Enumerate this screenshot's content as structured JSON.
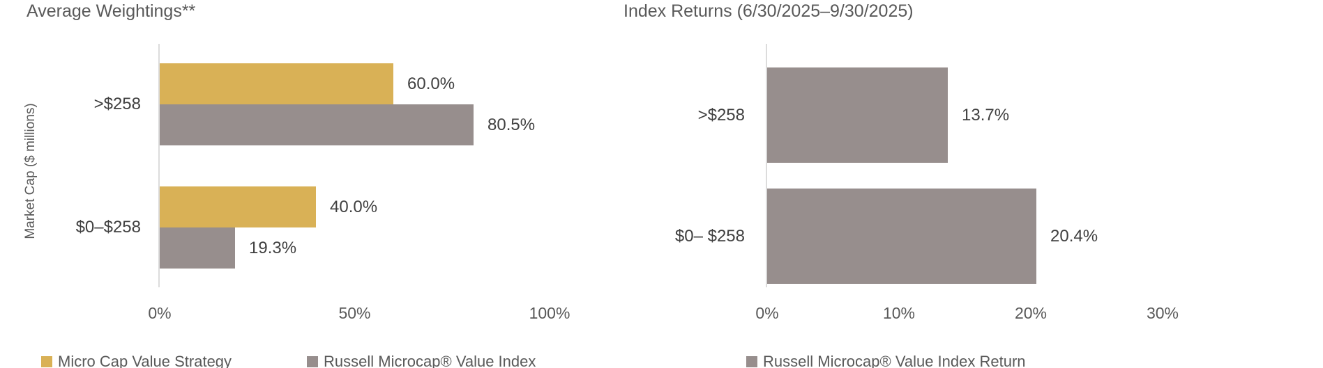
{
  "page": {
    "background_color": "#ffffff",
    "accent_gold": "#d9b156",
    "accent_gray": "#978e8d",
    "axis_color": "#dcdcdc",
    "title_color": "#595959",
    "label_color": "#404040"
  },
  "chart_data": [
    {
      "type": "bar",
      "orientation": "horizontal",
      "title": "Average Weightings**",
      "xlabel": "",
      "ylabel": "Market Cap ($ millions)",
      "categories": [
        ">$258",
        "$0–$258"
      ],
      "series": [
        {
          "name": "Micro Cap Value Strategy",
          "color": "#d9b156",
          "values": [
            60.0,
            40.0
          ],
          "data_labels": [
            "60.0%",
            "40.0%"
          ]
        },
        {
          "name": "Russell Microcap® Value Index",
          "color": "#978e8d",
          "values": [
            80.5,
            19.3
          ],
          "data_labels": [
            "80.5%",
            "19.3%"
          ]
        }
      ],
      "xlim": [
        0,
        100
      ],
      "x_ticks": [
        {
          "value": 0,
          "label": "0%"
        },
        {
          "value": 50,
          "label": "50%"
        },
        {
          "value": 100,
          "label": "100%"
        }
      ],
      "grid": false,
      "legend_position": "bottom"
    },
    {
      "type": "bar",
      "orientation": "horizontal",
      "title": "Index Returns (6/30/2025–9/30/2025)",
      "xlabel": "",
      "ylabel": "",
      "categories": [
        ">$258",
        "$0– $258"
      ],
      "series": [
        {
          "name": "Russell Microcap® Value Index Return",
          "color": "#978e8d",
          "values": [
            13.7,
            20.4
          ],
          "data_labels": [
            "13.7%",
            "20.4%"
          ]
        }
      ],
      "xlim": [
        0,
        30
      ],
      "x_ticks": [
        {
          "value": 0,
          "label": "0%"
        },
        {
          "value": 10,
          "label": "10%"
        },
        {
          "value": 20,
          "label": "20%"
        },
        {
          "value": 30,
          "label": "30%"
        }
      ],
      "grid": false,
      "legend_position": "bottom"
    }
  ]
}
